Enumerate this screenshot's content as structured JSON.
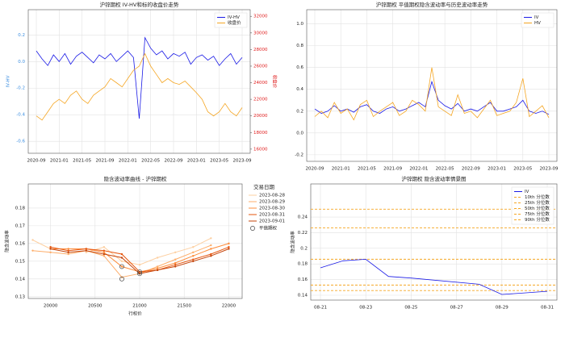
{
  "chart_data": [
    {
      "type": "line",
      "title": "沪锌期权 IV-HV和标的收盘价走势",
      "ylabel": "IV-HV",
      "y2label": "收盘价",
      "x": [
        "2020-09",
        "2020-10",
        "2020-11",
        "2020-12",
        "2021-01",
        "2021-02",
        "2021-03",
        "2021-04",
        "2021-05",
        "2021-06",
        "2021-07",
        "2021-08",
        "2021-09",
        "2021-10",
        "2021-11",
        "2021-12",
        "2022-01",
        "2022-02",
        "2022-03",
        "2022-04",
        "2022-05",
        "2022-06",
        "2022-07",
        "2022-08",
        "2022-09",
        "2022-10",
        "2022-11",
        "2022-12",
        "2023-01",
        "2023-02",
        "2023-03",
        "2023-04",
        "2023-05",
        "2023-06",
        "2023-07",
        "2023-08",
        "2023-09"
      ],
      "xticks": [
        "2020-09",
        "2021-01",
        "2021-05",
        "2021-09",
        "2022-01",
        "2022-05",
        "2022-09",
        "2023-01",
        "2023-05",
        "2023-09"
      ],
      "ylim": [
        -0.69,
        0.39
      ],
      "yticks": [
        -0.6,
        -0.4,
        -0.2,
        {
          "value": 0,
          "label": "0.0"
        },
        0.2
      ],
      "y2lim": [
        15500,
        32800
      ],
      "y2ticks": [
        16000,
        18000,
        20000,
        22000,
        24000,
        26000,
        28000,
        30000,
        32000
      ],
      "grid": true,
      "legend": "upper right",
      "series": [
        {
          "name": "IV-HV",
          "color": "#1a1ae6",
          "values": [
            0.08,
            0.02,
            -0.03,
            0.05,
            0.0,
            0.06,
            -0.02,
            0.04,
            0.07,
            0.03,
            -0.01,
            0.05,
            0.02,
            0.06,
            0.0,
            0.04,
            0.08,
            0.03,
            -0.43,
            0.18,
            0.1,
            0.05,
            0.08,
            0.02,
            0.06,
            0.04,
            0.07,
            -0.02,
            0.03,
            0.05,
            0.01,
            0.04,
            -0.03,
            0.02,
            0.06,
            -0.02,
            0.03
          ]
        },
        {
          "name": "收盘价",
          "color": "#f5a623",
          "axis": "y2",
          "values": [
            20000,
            19500,
            20500,
            21500,
            22000,
            21500,
            22500,
            23000,
            22000,
            21500,
            22500,
            23000,
            23500,
            24500,
            24000,
            23500,
            24500,
            25500,
            26000,
            27500,
            26000,
            25000,
            24000,
            24500,
            24000,
            23800,
            24200,
            23500,
            22800,
            22000,
            20500,
            20000,
            20500,
            21500,
            20500,
            20000,
            21000
          ]
        }
      ]
    },
    {
      "type": "line",
      "title": "沪锌期权 平值期权隐含波动率与历史波动率走势",
      "x": [
        "2020-09",
        "2020-10",
        "2020-11",
        "2020-12",
        "2021-01",
        "2021-02",
        "2021-03",
        "2021-04",
        "2021-05",
        "2021-06",
        "2021-07",
        "2021-08",
        "2021-09",
        "2021-10",
        "2021-11",
        "2021-12",
        "2022-01",
        "2022-02",
        "2022-03",
        "2022-04",
        "2022-05",
        "2022-06",
        "2022-07",
        "2022-08",
        "2022-09",
        "2022-10",
        "2022-11",
        "2022-12",
        "2023-01",
        "2023-02",
        "2023-03",
        "2023-04",
        "2023-05",
        "2023-06",
        "2023-07",
        "2023-08",
        "2023-09"
      ],
      "xticks": [
        "2020-09",
        "2021-01",
        "2021-05",
        "2021-09",
        "2022-01",
        "2022-05",
        "2022-09",
        "2023-01",
        "2023-05",
        "2023-09"
      ],
      "ylim": [
        -0.26,
        1.13
      ],
      "yticks": [
        -0.2,
        {
          "value": 0,
          "label": "0.0"
        },
        0.2,
        0.4,
        0.6,
        0.8,
        {
          "value": 1,
          "label": "1.0"
        }
      ],
      "grid": true,
      "legend": "upper right",
      "series": [
        {
          "name": "IV",
          "color": "#1a1ae6",
          "values": [
            0.22,
            0.18,
            0.2,
            0.25,
            0.2,
            0.22,
            0.19,
            0.24,
            0.26,
            0.2,
            0.18,
            0.22,
            0.24,
            0.2,
            0.22,
            0.25,
            0.28,
            0.24,
            0.47,
            0.3,
            0.25,
            0.22,
            0.27,
            0.2,
            0.22,
            0.2,
            0.24,
            0.28,
            0.2,
            0.2,
            0.22,
            0.24,
            0.3,
            0.2,
            0.18,
            0.2,
            0.17
          ]
        },
        {
          "name": "HV",
          "color": "#f5a623",
          "values": [
            0.15,
            0.2,
            0.14,
            0.28,
            0.18,
            0.22,
            0.12,
            0.26,
            0.3,
            0.15,
            0.2,
            0.24,
            0.28,
            0.16,
            0.2,
            0.3,
            0.26,
            0.2,
            0.6,
            0.24,
            0.2,
            0.16,
            0.35,
            0.18,
            0.2,
            0.14,
            0.22,
            0.3,
            0.16,
            0.18,
            0.2,
            0.28,
            0.5,
            0.15,
            0.2,
            0.25,
            0.14
          ]
        }
      ]
    },
    {
      "type": "line",
      "title": "隐含波动率曲线 - 沪锌期权",
      "xlabel": "行权价",
      "ylabel": "隐含波动率",
      "legend_title": "交易日期",
      "x": [
        19800,
        20000,
        20200,
        20400,
        20600,
        20800,
        21000,
        21200,
        21400,
        21600,
        21800,
        22000
      ],
      "xlim": [
        19750,
        22150
      ],
      "xticks": [
        20000,
        20500,
        21000,
        21500,
        22000
      ],
      "ylim": [
        0.129,
        0.1936
      ],
      "yticks": [
        0.13,
        0.14,
        0.15,
        0.16,
        0.17,
        0.18
      ],
      "grid": true,
      "markers": true,
      "series": [
        {
          "name": "2023-08-28",
          "color": "#fdd0a2",
          "values": [
            0.162,
            0.157,
            null,
            0.155,
            0.158,
            0.15,
            0.148,
            0.152,
            0.155,
            0.158,
            0.163,
            null
          ]
        },
        {
          "name": "2023-08-29",
          "color": "#fdae6b",
          "values": [
            0.156,
            0.155,
            0.154,
            0.156,
            0.153,
            0.141,
            0.143,
            0.147,
            0.151,
            0.155,
            0.159,
            null
          ]
        },
        {
          "name": "2023-08-30",
          "color": "#fd8d3c",
          "values": [
            null,
            0.157,
            0.157,
            0.157,
            0.155,
            0.147,
            0.144,
            0.146,
            0.149,
            0.153,
            0.157,
            0.16
          ]
        },
        {
          "name": "2023-08-31",
          "color": "#e6550d",
          "values": [
            null,
            0.158,
            0.156,
            0.157,
            0.156,
            0.154,
            0.144,
            0.145,
            0.148,
            0.151,
            0.154,
            0.158
          ]
        },
        {
          "name": "2023-09-01",
          "color": "#c4440a",
          "values": [
            null,
            0.157,
            0.155,
            0.156,
            0.154,
            0.152,
            0.143,
            0.145,
            0.147,
            0.15,
            0.153,
            0.157
          ]
        }
      ],
      "atm": {
        "name": "平值期权",
        "x": [
          20800,
          20800,
          21000,
          21000
        ],
        "values": [
          0.147,
          0.14,
          0.144,
          0.143
        ]
      }
    },
    {
      "type": "line",
      "title": "沪锌期权 隐含波动率情景图",
      "ylabel": "隐含波动率",
      "x": [
        "08-21",
        "08-22",
        "08-23",
        "08-24",
        "08-25",
        "08-28",
        "08-29",
        "08-30",
        "08-31"
      ],
      "xticks": [
        "08-21",
        "08-23",
        "08-25",
        "08-27",
        "08-29",
        "08-31"
      ],
      "ylim": [
        0.1338,
        0.2823
      ],
      "yticks": [
        0.14,
        0.16,
        0.18,
        0.2,
        0.22,
        0.24
      ],
      "grid": true,
      "legend": "upper right",
      "series": [
        {
          "name": "IV",
          "color": "#1a1ae6",
          "values": [
            0.175,
            0.184,
            0.186,
            0.164,
            0.162,
            0.154,
            0.141,
            0.143,
            0.145
          ]
        }
      ],
      "percentiles": [
        {
          "name": "10th 分位数",
          "value": 0.146
        },
        {
          "name": "25th 分位数",
          "value": 0.153
        },
        {
          "name": "50th 分位数",
          "value": 0.186
        },
        {
          "name": "75th 分位数",
          "value": 0.226
        },
        {
          "name": "90th 分位数",
          "value": 0.25
        }
      ],
      "percentile_color": "#f5a623"
    }
  ]
}
